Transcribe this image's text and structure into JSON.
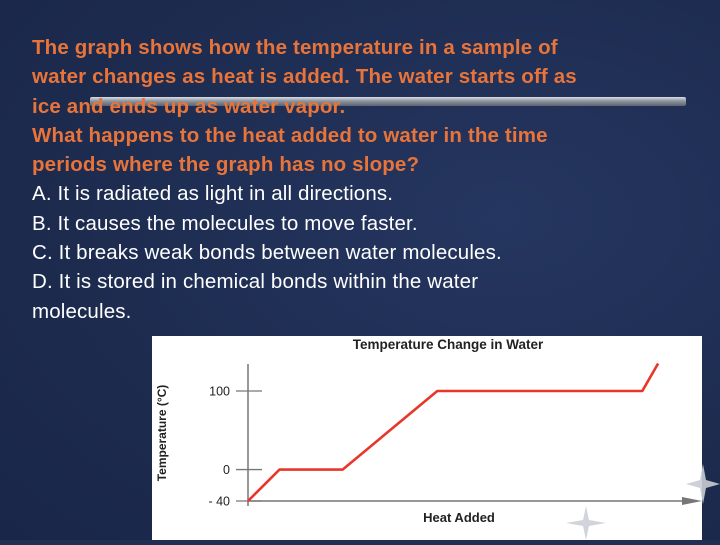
{
  "slide": {
    "question_lines": [
      "The graph shows how the temperature in a sample of",
      "water changes as heat is added. The water starts off as",
      "ice and ends up as water vapor.",
      "What happens to the heat added to water in the time",
      "periods where the graph has no slope?"
    ],
    "choices": [
      "A. It is radiated as light in all directions.",
      "B. It causes the molecules to move faster.",
      "C. It breaks weak bonds between water molecules.",
      "D. It is stored in chemical bonds within the water",
      "molecules."
    ]
  },
  "colors": {
    "background": "#1f2e52",
    "question_text": "#e8743a",
    "choice_text": "#ffffff",
    "line": "#e8372a",
    "axis": "#777777"
  },
  "chart_data": {
    "type": "line",
    "title": "Temperature Change in Water",
    "xlabel": "Heat Added",
    "ylabel": "Temperature (°C)",
    "y_ticks": [
      "100",
      "0",
      "-40"
    ],
    "y_tick_values": [
      100,
      0,
      -40
    ],
    "ylim": [
      -40,
      100
    ],
    "series": [
      {
        "x": [
          0,
          1,
          3,
          6,
          12.5,
          13
        ],
        "y": [
          -40,
          0,
          0,
          100,
          100,
          135
        ]
      }
    ],
    "grid": false
  }
}
